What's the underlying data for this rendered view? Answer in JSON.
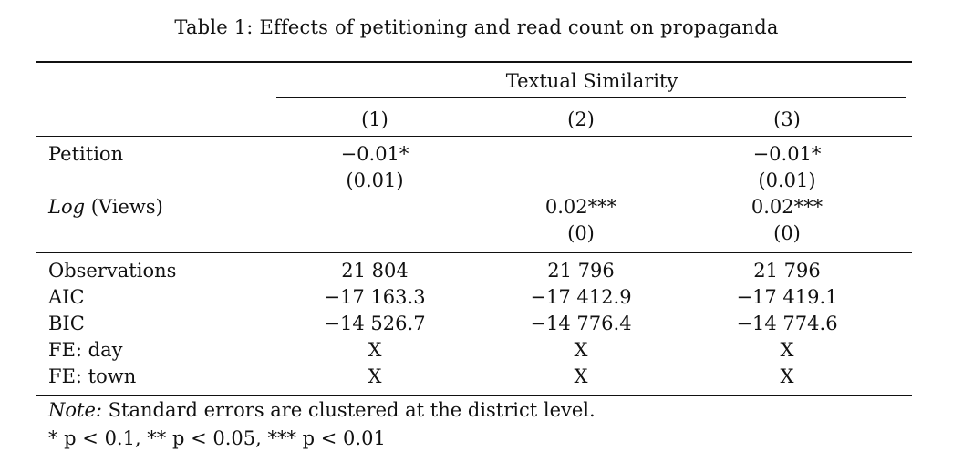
{
  "caption": "Table 1: Effects of petitioning and read count on propaganda",
  "spanner": "Textual Similarity",
  "columns": [
    "(1)",
    "(2)",
    "(3)"
  ],
  "coef_rows": [
    {
      "label": "Petition",
      "values": [
        "−0.01*",
        "",
        "−0.01*"
      ],
      "se": [
        "(0.01)",
        "",
        "(0.01)"
      ]
    },
    {
      "label_italic": "Log",
      "label_rest": " (Views)",
      "values": [
        "",
        "0.02***",
        "0.02***"
      ],
      "se": [
        "",
        "(0)",
        "(0)"
      ]
    }
  ],
  "stat_rows": [
    {
      "label": "Observations",
      "values": [
        "21 804",
        "21 796",
        "21 796"
      ]
    },
    {
      "label": "AIC",
      "values": [
        "−17 163.3",
        "−17 412.9",
        "−17 419.1"
      ]
    },
    {
      "label": "BIC",
      "values": [
        "−14 526.7",
        "−14 776.4",
        "−14 774.6"
      ]
    },
    {
      "label": "FE: day",
      "values": [
        "X",
        "X",
        "X"
      ]
    },
    {
      "label": "FE: town",
      "values": [
        "X",
        "X",
        "X"
      ]
    }
  ],
  "note_label": "Note:",
  "note_text": " Standard errors are clustered at the district level.",
  "significance": "* p < 0.1, ** p < 0.05, *** p < 0.01"
}
